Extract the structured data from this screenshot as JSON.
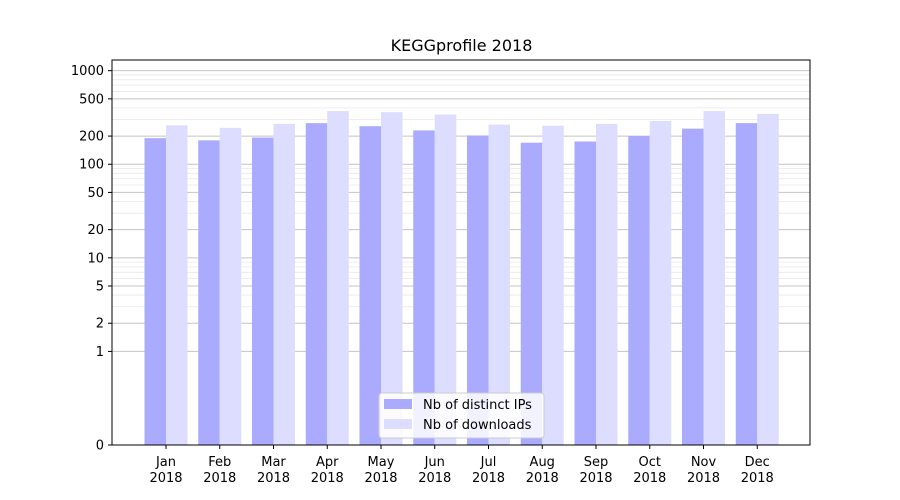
{
  "chart_data": {
    "type": "bar",
    "title": "KEGGprofile 2018",
    "xlabel": "",
    "ylabel": "",
    "y_scale": "symlog",
    "ylim": [
      0,
      1300
    ],
    "y_ticks": [
      0,
      1,
      2,
      5,
      10,
      20,
      50,
      100,
      200,
      500,
      1000
    ],
    "grid": "horizontal",
    "legend_position": "bottom-center",
    "categories": [
      [
        "Jan",
        "2018"
      ],
      [
        "Feb",
        "2018"
      ],
      [
        "Mar",
        "2018"
      ],
      [
        "Apr",
        "2018"
      ],
      [
        "May",
        "2018"
      ],
      [
        "Jun",
        "2018"
      ],
      [
        "Jul",
        "2018"
      ],
      [
        "Aug",
        "2018"
      ],
      [
        "Sep",
        "2018"
      ],
      [
        "Oct",
        "2018"
      ],
      [
        "Nov",
        "2018"
      ],
      [
        "Dec",
        "2018"
      ]
    ],
    "series": [
      {
        "name": "Nb of distinct IPs",
        "color": "#aaaaff",
        "values": [
          190,
          180,
          193,
          275,
          255,
          230,
          203,
          170,
          175,
          200,
          240,
          275
        ]
      },
      {
        "name": "Nb of downloads",
        "color": "#ddddff",
        "values": [
          260,
          245,
          270,
          370,
          360,
          340,
          265,
          258,
          270,
          290,
          370,
          345
        ]
      }
    ]
  }
}
